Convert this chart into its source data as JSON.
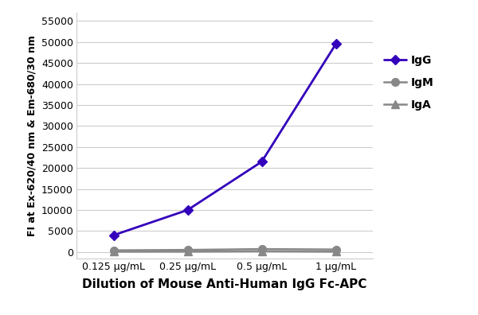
{
  "x_labels": [
    "0.125 μg/mL",
    "0.25 μg/mL",
    "0.5 μg/mL",
    "1 μg/mL"
  ],
  "x_positions": [
    0,
    1,
    2,
    3
  ],
  "IgG": [
    4000,
    10000,
    21500,
    49500
  ],
  "IgM": [
    400,
    500,
    700,
    600
  ],
  "IgA": [
    100,
    100,
    200,
    100
  ],
  "IgG_color": "#3300BB",
  "IgM_color": "#888888",
  "IgA_color": "#888888",
  "ylabel": "FI at Ex-620/40 nm & Em-680/30 nm",
  "xlabel": "Dilution of Mouse Anti-Human IgG Fc-APC",
  "ylim": [
    -1500,
    57000
  ],
  "yticks": [
    0,
    5000,
    10000,
    15000,
    20000,
    25000,
    30000,
    35000,
    40000,
    45000,
    50000,
    55000
  ],
  "ylabel_fontsize": 9,
  "xlabel_fontsize": 11,
  "tick_fontsize": 9,
  "legend_fontsize": 10,
  "plot_bg": "#ffffff",
  "figure_bg": "#ffffff",
  "grid_color": "#cccccc"
}
